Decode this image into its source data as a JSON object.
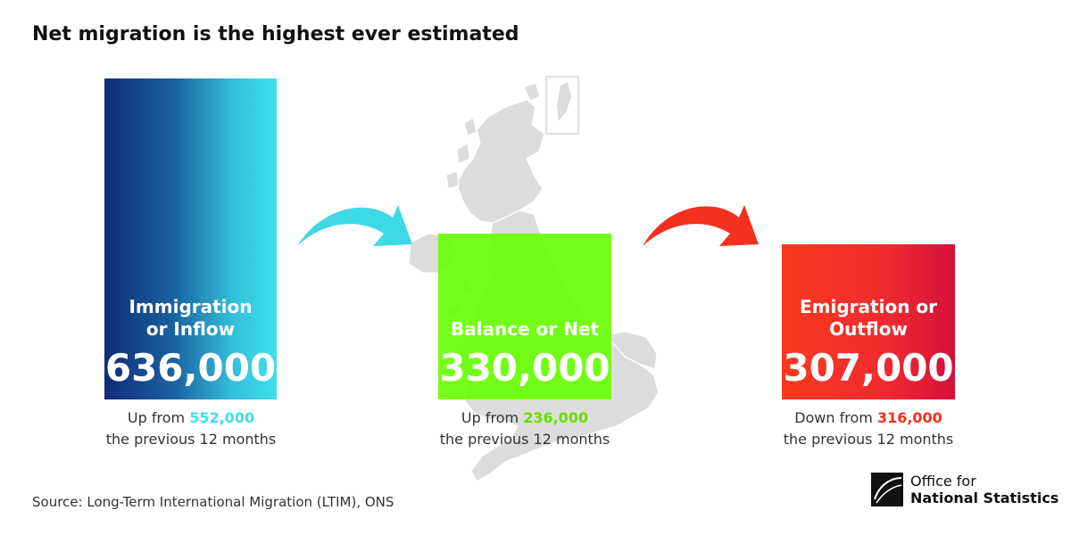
{
  "title": "Net migration is the highest ever estimated",
  "colors": {
    "inflow": "#3fdfeb",
    "net": "#66ff00",
    "outflow": "#f02a2e",
    "map": "#dcdcdc"
  },
  "boxes": {
    "immigration": {
      "label_line1": "Immigration",
      "label_line2": "or Inflow",
      "value": "636,000",
      "caption_prefix": "Up from ",
      "previous": "552,000",
      "caption_suffix": "the previous 12 months"
    },
    "net": {
      "label_line1": "Balance or Net",
      "value": "330,000",
      "caption_prefix": "Up from ",
      "previous": "236,000",
      "caption_suffix": "the previous 12 months"
    },
    "emigration": {
      "label_line1": "Emigration or",
      "label_line2": "Outflow",
      "value": "307,000",
      "caption_prefix": "Down from ",
      "previous": "316,000",
      "caption_suffix": "the previous 12 months"
    }
  },
  "source": "Source: Long-Term International Migration (LTIM), ONS",
  "logo": {
    "line1": "Office for",
    "line2": "National Statistics",
    "icon": "ons-logo-icon"
  }
}
